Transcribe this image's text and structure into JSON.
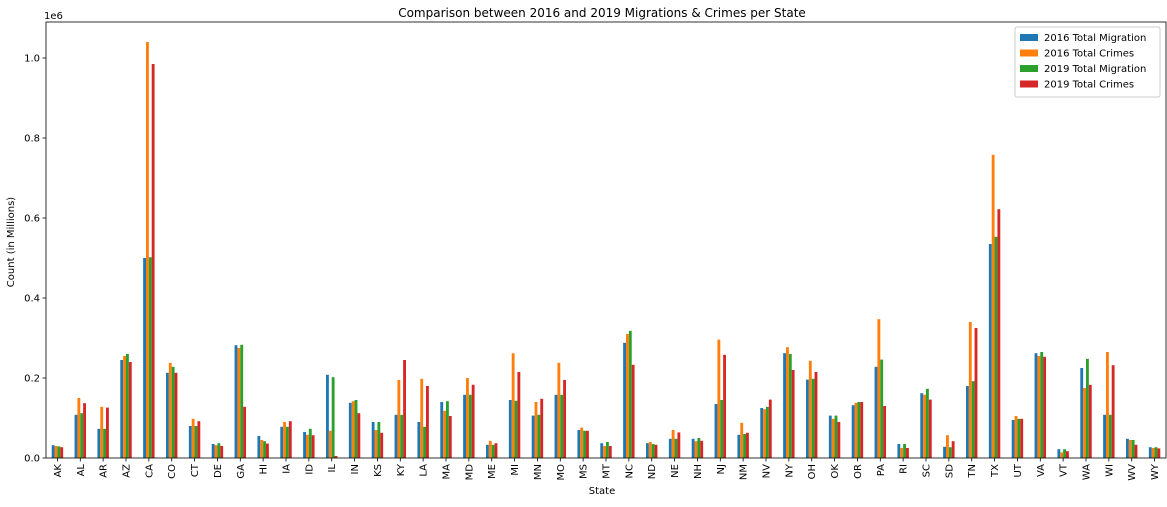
{
  "chart_data": {
    "type": "bar",
    "title": "Comparison between 2016 and 2019 Migrations & Crimes per State",
    "xlabel": "State",
    "ylabel": "Count (in Millions)",
    "y_offset_label": "1e6",
    "ylim": [
      0,
      1090000
    ],
    "yticks": [
      0,
      200000,
      400000,
      600000,
      800000,
      1000000
    ],
    "ytick_labels": [
      "0.0",
      "0.2",
      "0.4",
      "0.6",
      "0.8",
      "1.0"
    ],
    "grid": false,
    "legend_position": "top-right",
    "categories": [
      "AK",
      "AL",
      "AR",
      "AZ",
      "CA",
      "CO",
      "CT",
      "DE",
      "GA",
      "HI",
      "IA",
      "ID",
      "IL",
      "IN",
      "KS",
      "KY",
      "LA",
      "MA",
      "MD",
      "ME",
      "MI",
      "MN",
      "MO",
      "MS",
      "MT",
      "NC",
      "ND",
      "NE",
      "NH",
      "NJ",
      "NM",
      "NV",
      "NY",
      "OH",
      "OK",
      "OR",
      "PA",
      "RI",
      "SC",
      "SD",
      "TN",
      "TX",
      "UT",
      "VA",
      "VT",
      "WA",
      "WI",
      "WV",
      "WY"
    ],
    "series": [
      {
        "name": "2016 Total Migration",
        "color": "#1f77b4",
        "values": [
          32000,
          108000,
          73000,
          245000,
          500000,
          213000,
          80000,
          35000,
          282000,
          55000,
          78000,
          65000,
          208000,
          138000,
          90000,
          108000,
          90000,
          140000,
          158000,
          33000,
          145000,
          106000,
          158000,
          70000,
          37000,
          288000,
          37000,
          48000,
          48000,
          135000,
          58000,
          125000,
          262000,
          196000,
          106000,
          132000,
          228000,
          35000,
          162000,
          28000,
          180000,
          535000,
          95000,
          262000,
          22000,
          225000,
          108000,
          48000,
          27000
        ]
      },
      {
        "name": "2016 Total Crimes",
        "color": "#ff7f0e",
        "values": [
          30000,
          150000,
          128000,
          255000,
          1040000,
          238000,
          98000,
          32000,
          275000,
          45000,
          90000,
          58000,
          68000,
          142000,
          70000,
          195000,
          198000,
          118000,
          200000,
          43000,
          262000,
          140000,
          238000,
          76000,
          30000,
          310000,
          40000,
          70000,
          42000,
          296000,
          88000,
          122000,
          277000,
          243000,
          98000,
          138000,
          347000,
          25000,
          158000,
          57000,
          340000,
          758000,
          105000,
          255000,
          14000,
          175000,
          265000,
          45000,
          25000
        ]
      },
      {
        "name": "2019 Total Migration",
        "color": "#2ca02c",
        "values": [
          29000,
          112000,
          73000,
          260000,
          502000,
          228000,
          80000,
          37000,
          283000,
          42000,
          78000,
          73000,
          202000,
          145000,
          90000,
          108000,
          78000,
          142000,
          158000,
          33000,
          143000,
          108000,
          158000,
          68000,
          40000,
          318000,
          35000,
          48000,
          50000,
          145000,
          60000,
          128000,
          260000,
          198000,
          106000,
          140000,
          246000,
          35000,
          173000,
          27000,
          192000,
          553000,
          98000,
          265000,
          22000,
          248000,
          108000,
          45000,
          27000
        ]
      },
      {
        "name": "2019 Total Crimes",
        "color": "#d62728",
        "values": [
          27000,
          137000,
          126000,
          240000,
          985000,
          213000,
          92000,
          30000,
          128000,
          36000,
          92000,
          57000,
          5000,
          112000,
          63000,
          245000,
          180000,
          105000,
          183000,
          37000,
          215000,
          148000,
          195000,
          68000,
          30000,
          233000,
          33000,
          64000,
          43000,
          258000,
          63000,
          146000,
          220000,
          215000,
          90000,
          140000,
          130000,
          25000,
          146000,
          42000,
          325000,
          622000,
          98000,
          253000,
          17000,
          183000,
          232000,
          33000,
          24000
        ]
      }
    ]
  }
}
